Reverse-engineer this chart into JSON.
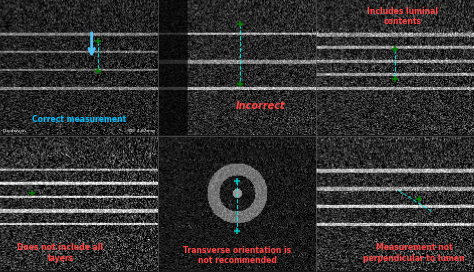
{
  "panels": [
    {
      "row": 0,
      "col": 0,
      "label": "Correct measurement",
      "label_color": "#00bfff",
      "label_style": "normal",
      "has_arrow": true,
      "arrow_color": "#4fc3f7",
      "border_color": "#222222",
      "bg_seed": 42,
      "noise_scale": 0.5,
      "has_layers": true,
      "layer_color": 0.6,
      "has_bottom_text": true,
      "bottom_text": "Duodenum",
      "bottom_text2": "SD: 4.87mm"
    },
    {
      "row": 0,
      "col": 1,
      "label": "Incorrect",
      "label_color": "#ff4444",
      "label_style": "italic",
      "has_arrow": false,
      "border_color": "#333333",
      "bg_seed": 7,
      "noise_scale": 0.4,
      "has_layers": true,
      "layer_color": 0.55,
      "has_bottom_text": false,
      "bottom_text": "",
      "bottom_text2": ""
    },
    {
      "row": 0,
      "col": 2,
      "label": "Includes luminal\ncontents",
      "label_color": "#ff4444",
      "label_style": "normal",
      "has_arrow": false,
      "border_color": "#333333",
      "bg_seed": 15,
      "noise_scale": 0.45,
      "has_layers": true,
      "layer_color": 0.5,
      "has_bottom_text": false,
      "bottom_text": "",
      "bottom_text2": ""
    },
    {
      "row": 1,
      "col": 0,
      "label": "Does not include all\nlayers",
      "label_color": "#ff4444",
      "label_style": "normal",
      "has_arrow": false,
      "border_color": "#555555",
      "bg_seed": 23,
      "noise_scale": 0.6,
      "has_layers": true,
      "layer_color": 0.7,
      "has_bottom_text": false,
      "bottom_text": "",
      "bottom_text2": ""
    },
    {
      "row": 1,
      "col": 1,
      "label": "Transverse orientation is\nnot recommended",
      "label_color": "#ff4444",
      "label_style": "normal",
      "has_arrow": false,
      "border_color": "#222222",
      "bg_seed": 31,
      "noise_scale": 0.35,
      "has_layers": false,
      "layer_color": 0.4,
      "has_bottom_text": false,
      "bottom_text": "",
      "bottom_text2": ""
    },
    {
      "row": 1,
      "col": 2,
      "label": "Measurement not\nperpendicular to lumen",
      "label_color": "#ff4444",
      "label_style": "normal",
      "has_arrow": false,
      "border_color": "#333333",
      "bg_seed": 55,
      "noise_scale": 0.5,
      "has_layers": true,
      "layer_color": 0.65,
      "has_bottom_text": false,
      "bottom_text": "",
      "bottom_text2": ""
    }
  ],
  "nrows": 2,
  "ncols": 3,
  "figsize": [
    4.74,
    2.72
  ],
  "dpi": 100,
  "bg_color": "#1a1a1a",
  "separator_color": "#555555"
}
